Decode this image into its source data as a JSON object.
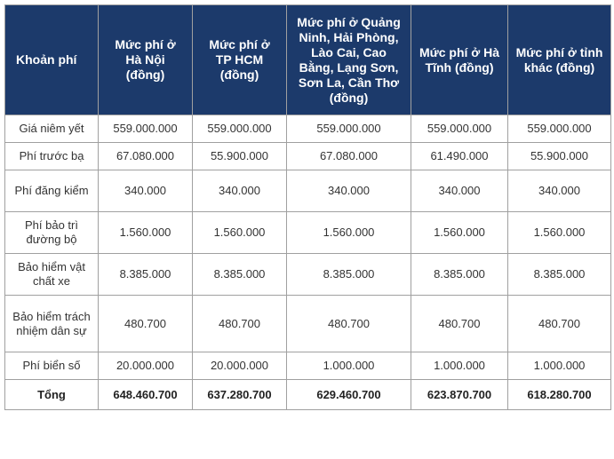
{
  "table": {
    "header": [
      "Khoản phí",
      "Mức phí ở Hà Nội (đồng)",
      "Mức phí ở TP HCM (đồng)",
      "Mức phí ở Quảng Ninh, Hải Phòng, Lào Cai, Cao Bằng, Lạng Sơn, Sơn La, Cần Thơ (đồng)",
      "Mức phí ở Hà Tĩnh (đồng)",
      "Mức phí ở tỉnh khác (đồng)"
    ],
    "rows": [
      [
        "Giá niêm yết",
        "559.000.000",
        "559.000.000",
        "559.000.000",
        "559.000.000",
        "559.000.000"
      ],
      [
        "Phí trước bạ",
        "67.080.000",
        "55.900.000",
        "67.080.000",
        "61.490.000",
        "55.900.000"
      ],
      [
        "Phí đăng kiểm",
        "340.000",
        "340.000",
        "340.000",
        "340.000",
        "340.000"
      ],
      [
        "Phí bảo trì đường bộ",
        "1.560.000",
        "1.560.000",
        "1.560.000",
        "1.560.000",
        "1.560.000"
      ],
      [
        "Bảo hiểm vật chất xe",
        "8.385.000",
        "8.385.000",
        "8.385.000",
        "8.385.000",
        "8.385.000"
      ],
      [
        "Bảo hiểm trách nhiệm dân sự",
        "480.700",
        "480.700",
        "480.700",
        "480.700",
        "480.700"
      ],
      [
        "Phí biển số",
        "20.000.000",
        "20.000.000",
        "1.000.000",
        "1.000.000",
        "1.000.000"
      ],
      [
        "Tổng",
        "648.460.700",
        "637.280.700",
        "629.460.700",
        "623.870.700",
        "618.280.700"
      ]
    ]
  }
}
